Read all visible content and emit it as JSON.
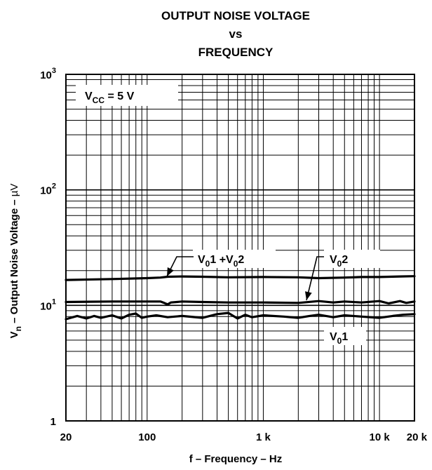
{
  "chart_data": {
    "type": "line",
    "title": [
      "OUTPUT NOISE VOLTAGE",
      "vs",
      "FREQUENCY"
    ],
    "xlabel": "f – Frequency – Hz",
    "ylabel": {
      "symbol_main": "V",
      "symbol_sub": "n",
      "text": " – Output Noise Voltage – ",
      "unit": "µV"
    },
    "x_scale": "log",
    "y_scale": "log",
    "xlim": [
      20,
      20000
    ],
    "ylim": [
      1,
      1000
    ],
    "grid": true,
    "x_ticks": [
      {
        "value": 20,
        "label": "20"
      },
      {
        "value": 100,
        "label": "100"
      },
      {
        "value": 1000,
        "label": "1 k"
      },
      {
        "value": 10000,
        "label": "10 k"
      },
      {
        "value": 20000,
        "label": "20 k"
      }
    ],
    "y_ticks": [
      {
        "value": 1,
        "base": "1",
        "exp": ""
      },
      {
        "value": 10,
        "base": "10",
        "exp": "1"
      },
      {
        "value": 100,
        "base": "10",
        "exp": "2"
      },
      {
        "value": 1000,
        "base": "10",
        "exp": "3"
      }
    ],
    "condition": {
      "main": "V",
      "sub": "CC",
      "rest": " = 5 V"
    },
    "series": [
      {
        "name": "V01 +V02",
        "label_parts": [
          [
            "V",
            ""
          ],
          [
            "0",
            "sub"
          ],
          [
            "1 +V",
            ""
          ],
          [
            "0",
            "sub"
          ],
          [
            "2",
            ""
          ]
        ],
        "x": [
          20,
          50,
          100,
          130,
          150,
          200,
          300,
          500,
          1000,
          2000,
          3000,
          5000,
          7000,
          10000,
          15000,
          20000
        ],
        "y": [
          16.6,
          16.9,
          17.2,
          17.4,
          17.7,
          17.8,
          17.7,
          17.5,
          17.6,
          17.5,
          17.2,
          17.4,
          17.6,
          17.6,
          17.8,
          17.9
        ]
      },
      {
        "name": "V02",
        "label_parts": [
          [
            "V",
            ""
          ],
          [
            "0",
            "sub"
          ],
          [
            "2",
            ""
          ]
        ],
        "x": [
          20,
          50,
          100,
          130,
          140,
          150,
          160,
          200,
          300,
          500,
          1000,
          2000,
          3000,
          4000,
          5000,
          7000,
          10000,
          12000,
          15000,
          17000,
          20000
        ],
        "y": [
          10.7,
          10.8,
          10.8,
          10.8,
          10.5,
          10.2,
          10.6,
          10.8,
          10.7,
          10.6,
          10.6,
          10.5,
          10.9,
          10.6,
          10.8,
          10.6,
          10.9,
          10.4,
          10.9,
          10.5,
          10.8
        ]
      },
      {
        "name": "V01",
        "label_parts": [
          [
            "V",
            ""
          ],
          [
            "0",
            "sub"
          ],
          [
            "1",
            ""
          ]
        ],
        "x": [
          20,
          25,
          30,
          35,
          40,
          50,
          60,
          70,
          80,
          90,
          100,
          120,
          150,
          200,
          300,
          400,
          500,
          600,
          700,
          800,
          1000,
          1500,
          2000,
          2500,
          3000,
          4000,
          5000,
          7000,
          10000,
          13000,
          16000,
          20000
        ],
        "y": [
          7.6,
          8.1,
          7.7,
          8.1,
          7.8,
          8.2,
          7.7,
          8.3,
          8.5,
          7.8,
          8.0,
          8.2,
          7.9,
          8.1,
          7.8,
          8.4,
          8.6,
          7.7,
          8.3,
          7.9,
          8.2,
          8.0,
          7.8,
          8.1,
          8.3,
          7.9,
          8.2,
          8.0,
          7.8,
          8.1,
          8.3,
          8.4
        ]
      }
    ]
  }
}
